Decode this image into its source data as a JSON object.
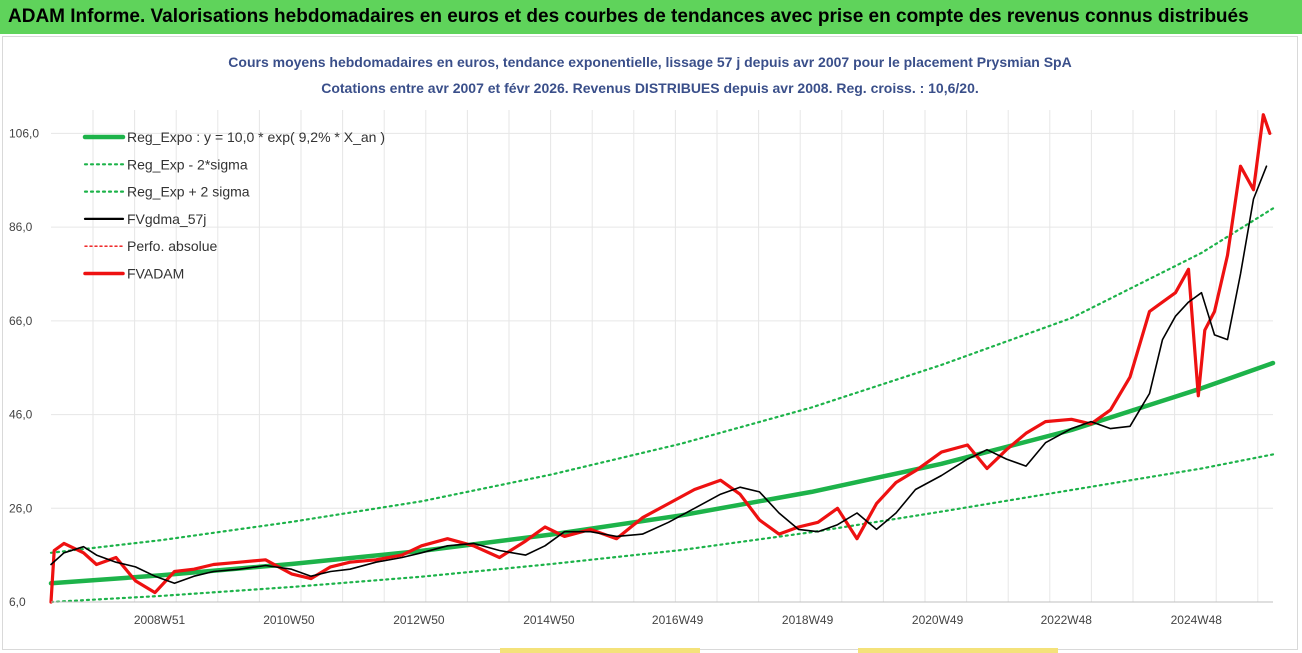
{
  "banner": {
    "title": "ADAM Informe. Valorisations hebdomadaires en euros et des courbes de tendances avec prise en compte des revenus connus distribués"
  },
  "colors": {
    "banner_bg": "#5fd35b",
    "trend": "#1db34a",
    "price": "#000000",
    "adam": "#ee1111",
    "accent": "#f4e27a",
    "title": "#3a4f8a"
  },
  "chart_data": {
    "type": "line",
    "title": "Cours moyens hebdomadaires en euros, tendance exponentielle, lissage 57 j depuis avr 2007 pour le placement Prysmian SpA",
    "subtitle": "Cotations entre avr 2007 et févr 2026. Revenus DISTRIBUES depuis avr 2008. Reg. croiss. : 10,6/20.",
    "ylim": [
      6,
      111
    ],
    "xlim": [
      2007.3,
      2026.1
    ],
    "y_ticks": [
      "6,0",
      "26,0",
      "46,0",
      "66,0",
      "86,0",
      "106,0"
    ],
    "y_tick_values": [
      6,
      26,
      46,
      66,
      86,
      106
    ],
    "x_ticks": [
      "2008W51",
      "2010W50",
      "2012W50",
      "2014W50",
      "2016W49",
      "2018W49",
      "2020W49",
      "2022W48",
      "2024W48"
    ],
    "x_tick_values": [
      2008.97,
      2010.96,
      2012.96,
      2014.96,
      2016.94,
      2018.94,
      2020.94,
      2022.92,
      2024.92
    ],
    "legend_placement": "top-left",
    "grid": true,
    "legend": [
      {
        "name": "Reg_Expo : y = 10,0 * exp( 9,2% *  X_an )",
        "style": "thick",
        "color": "#1db34a"
      },
      {
        "name": "Reg_Exp - 2*sigma",
        "style": "dotted",
        "color": "#1db34a"
      },
      {
        "name": "Reg_Exp + 2 sigma",
        "style": "dotted",
        "color": "#1db34a"
      },
      {
        "name": "FVgdma_57j",
        "style": "solid",
        "color": "#000000"
      },
      {
        "name": "Perfo. absolue",
        "style": "dotted-thin",
        "color": "#ee1111"
      },
      {
        "name": "FVADAM",
        "style": "thick",
        "color": "#ee1111"
      }
    ],
    "series": [
      {
        "name": "Reg_Expo : y = 10,0 * exp( 9,2% *  X_an )",
        "x": [
          2007.3,
          2009.0,
          2011.0,
          2013.0,
          2015.0,
          2017.0,
          2019.0,
          2021.0,
          2023.0,
          2025.0,
          2026.1
        ],
        "y": [
          10.0,
          11.7,
          14.1,
          16.9,
          20.4,
          24.5,
          29.5,
          35.5,
          42.7,
          51.6,
          57.0
        ]
      },
      {
        "name": "Reg_Exp - 2*sigma",
        "x": [
          2007.3,
          2009.0,
          2011.0,
          2013.0,
          2015.0,
          2017.0,
          2019.0,
          2021.0,
          2023.0,
          2025.0,
          2026.1
        ],
        "y": [
          6.0,
          7.3,
          9.2,
          11.4,
          14.1,
          17.1,
          20.9,
          25.3,
          29.9,
          34.5,
          37.5
        ]
      },
      {
        "name": "Reg_Exp + 2 sigma",
        "x": [
          2007.3,
          2009.0,
          2011.0,
          2013.0,
          2015.0,
          2017.0,
          2019.0,
          2021.0,
          2023.0,
          2025.0,
          2026.1
        ],
        "y": [
          16.5,
          19.2,
          23.1,
          27.5,
          33.2,
          39.8,
          47.5,
          56.6,
          66.6,
          80.5,
          90.0
        ]
      },
      {
        "name": "FVgdma_57j",
        "x": [
          2007.3,
          2007.5,
          2007.8,
          2008.0,
          2008.3,
          2008.6,
          2008.9,
          2009.2,
          2009.5,
          2009.8,
          2010.2,
          2010.6,
          2011.0,
          2011.3,
          2011.6,
          2011.9,
          2012.3,
          2012.7,
          2013.0,
          2013.4,
          2013.8,
          2014.2,
          2014.6,
          2014.9,
          2015.2,
          2015.6,
          2016.0,
          2016.4,
          2016.8,
          2017.2,
          2017.6,
          2017.9,
          2018.2,
          2018.5,
          2018.8,
          2019.1,
          2019.4,
          2019.7,
          2020.0,
          2020.3,
          2020.6,
          2021.0,
          2021.4,
          2021.7,
          2022.0,
          2022.3,
          2022.6,
          2023.0,
          2023.3,
          2023.6,
          2023.9,
          2024.2,
          2024.4,
          2024.6,
          2024.8,
          2025.0,
          2025.2,
          2025.4,
          2025.6,
          2025.8,
          2026.0
        ],
        "y": [
          14.0,
          16.5,
          17.8,
          16.0,
          14.5,
          13.5,
          11.5,
          10.0,
          11.5,
          12.5,
          13.0,
          13.8,
          13.0,
          11.5,
          12.5,
          13.0,
          14.5,
          15.5,
          16.5,
          18.0,
          18.5,
          17.0,
          16.0,
          18.0,
          21.0,
          21.0,
          20.0,
          20.5,
          23.0,
          26.0,
          29.0,
          30.5,
          29.5,
          25.0,
          21.5,
          21.0,
          22.5,
          25.0,
          21.5,
          25.0,
          30.0,
          33.0,
          36.5,
          38.5,
          36.5,
          35.0,
          40.0,
          43.0,
          44.5,
          43.0,
          43.5,
          50.5,
          62.0,
          67.0,
          70.0,
          72.0,
          63.0,
          62.0,
          76.0,
          92.0,
          99.0
        ]
      },
      {
        "name": "FVADAM",
        "x": [
          2007.3,
          2007.35,
          2007.5,
          2007.8,
          2008.0,
          2008.3,
          2008.6,
          2008.9,
          2009.2,
          2009.5,
          2009.8,
          2010.2,
          2010.6,
          2011.0,
          2011.3,
          2011.6,
          2011.9,
          2012.3,
          2012.7,
          2013.0,
          2013.4,
          2013.8,
          2014.2,
          2014.6,
          2014.9,
          2015.2,
          2015.6,
          2016.0,
          2016.4,
          2016.8,
          2017.2,
          2017.6,
          2017.9,
          2018.2,
          2018.5,
          2018.8,
          2019.1,
          2019.4,
          2019.7,
          2020.0,
          2020.3,
          2020.6,
          2021.0,
          2021.4,
          2021.7,
          2022.0,
          2022.3,
          2022.6,
          2023.0,
          2023.3,
          2023.6,
          2023.9,
          2024.2,
          2024.4,
          2024.6,
          2024.8,
          2024.95,
          2025.05,
          2025.2,
          2025.4,
          2025.6,
          2025.8,
          2025.95,
          2026.05
        ],
        "y": [
          6.0,
          17.0,
          18.5,
          16.5,
          14.0,
          15.5,
          10.5,
          8.0,
          12.5,
          13.0,
          14.0,
          14.5,
          15.0,
          12.0,
          11.0,
          13.5,
          14.5,
          15.0,
          16.0,
          18.0,
          19.5,
          18.0,
          15.5,
          19.0,
          22.0,
          20.0,
          21.5,
          19.5,
          24.0,
          27.0,
          30.0,
          32.0,
          29.0,
          23.5,
          20.5,
          22.0,
          23.0,
          26.0,
          19.5,
          27.0,
          31.5,
          34.0,
          38.0,
          39.5,
          34.5,
          38.5,
          42.0,
          44.5,
          45.0,
          44.0,
          47.0,
          54.0,
          68.0,
          70.0,
          72.0,
          77.0,
          50.0,
          64.0,
          68.0,
          80.0,
          99.0,
          94.0,
          110.0,
          106.0
        ]
      }
    ]
  }
}
